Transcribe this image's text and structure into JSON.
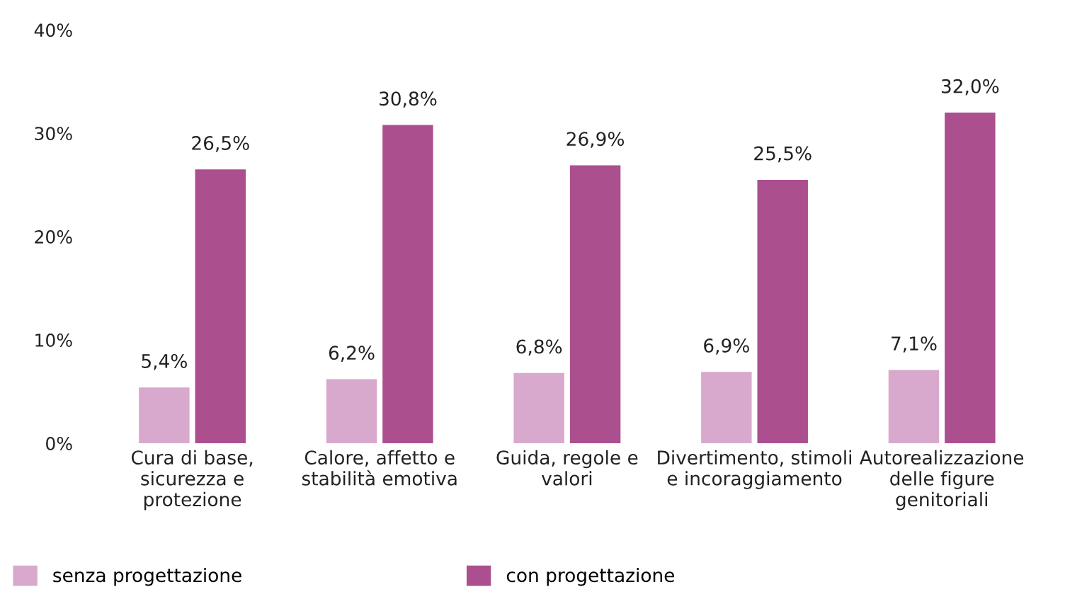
{
  "chart_data": {
    "type": "bar",
    "categories": [
      "Cura di base,\nsicurezza e\nprotezione",
      "Calore, affetto e\nstabilità emotiva",
      "Guida, regole e\nvalori",
      "Divertimento, stimoli\ne incoraggiamento",
      "Autorealizzazione\ndelle figure\ngenitoriali"
    ],
    "series": [
      {
        "name": "senza progettazione",
        "color": "#d9a9cd",
        "values": [
          5.4,
          6.2,
          6.8,
          6.9,
          7.1
        ],
        "value_labels": [
          "5,4%",
          "6,2%",
          "6,8%",
          "6,9%",
          "7,1%"
        ]
      },
      {
        "name": "con progettazione",
        "color": "#ab4f8e",
        "values": [
          26.5,
          30.8,
          26.9,
          25.5,
          32.0
        ],
        "value_labels": [
          "26,5%",
          "30,8%",
          "26,9%",
          "25,5%",
          "32,0%"
        ]
      }
    ],
    "ylim": [
      0,
      40
    ],
    "yticks": [
      {
        "value": 0,
        "label": "0%"
      },
      {
        "value": 10,
        "label": "10%"
      },
      {
        "value": 20,
        "label": "20%"
      },
      {
        "value": 30,
        "label": "30%"
      },
      {
        "value": 40,
        "label": "40%"
      }
    ],
    "grid": false,
    "legend": "bottom left"
  }
}
